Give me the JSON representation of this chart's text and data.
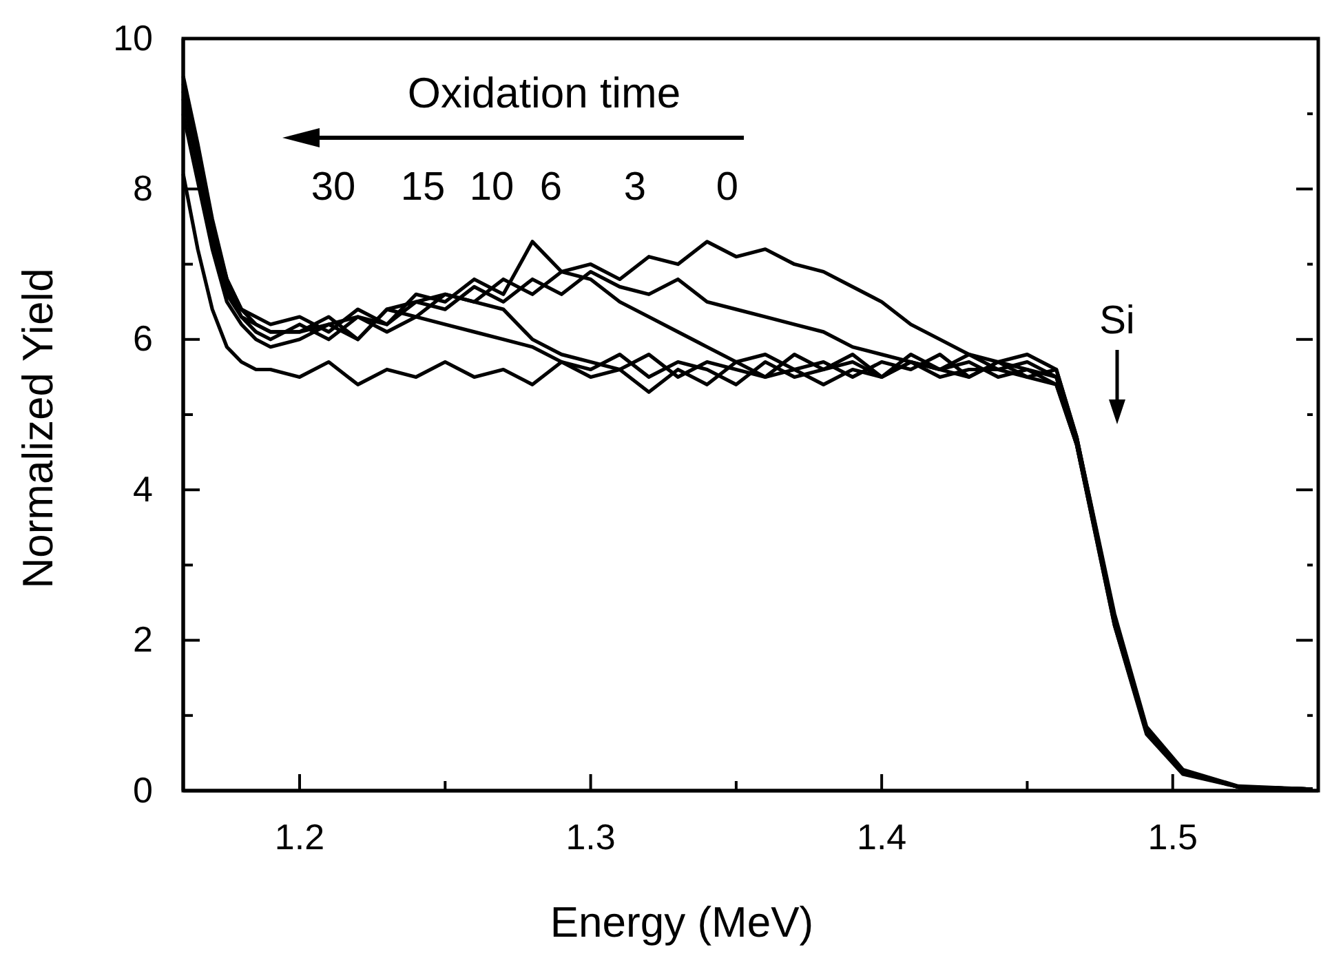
{
  "chart_data": {
    "type": "line",
    "xlabel": "Energy (MeV)",
    "ylabel": "Normalized Yield",
    "xlim": [
      1.16,
      1.55
    ],
    "ylim": [
      0,
      10
    ],
    "xticks": [
      1.2,
      {
        "value": 1.25,
        "label": null
      },
      1.3,
      {
        "value": 1.35,
        "label": null
      },
      1.4,
      {
        "value": 1.45,
        "label": null
      },
      1.5
    ],
    "yticks": [
      0,
      {
        "value": 1,
        "label": null
      },
      2,
      {
        "value": 3,
        "label": null
      },
      4,
      {
        "value": 5,
        "label": null
      },
      6,
      {
        "value": 7,
        "label": null
      },
      8,
      {
        "value": 9,
        "label": null
      },
      10
    ],
    "grid": false,
    "marker": "none",
    "line_style": "solid",
    "x": [
      1.16,
      1.165,
      1.17,
      1.175,
      1.18,
      1.185,
      1.19,
      1.2,
      1.21,
      1.22,
      1.23,
      1.24,
      1.25,
      1.26,
      1.27,
      1.28,
      1.29,
      1.3,
      1.31,
      1.32,
      1.33,
      1.34,
      1.35,
      1.36,
      1.37,
      1.38,
      1.39,
      1.4,
      1.41,
      1.42,
      1.43,
      1.44,
      1.45,
      1.46,
      1.467,
      1.48,
      1.491,
      1.5035,
      1.5225,
      1.548
    ],
    "series": [
      {
        "color": "#000000",
        "values": [
          9.5,
          8.6,
          7.6,
          6.8,
          6.4,
          6.2,
          6.1,
          6.1,
          6.3,
          6.0,
          6.4,
          6.3,
          6.6,
          6.5,
          6.8,
          6.6,
          6.9,
          7.0,
          6.8,
          7.1,
          7.0,
          7.3,
          7.1,
          7.2,
          7.0,
          6.9,
          6.7,
          6.5,
          6.2,
          6.0,
          5.8,
          5.7,
          5.8,
          5.6,
          4.7,
          2.3,
          0.8,
          0.25,
          0.05,
          0.02
        ]
      },
      {
        "color": "#000000",
        "values": [
          9.3,
          8.4,
          7.4,
          6.7,
          6.3,
          6.1,
          6.0,
          6.2,
          6.0,
          6.3,
          6.2,
          6.5,
          6.4,
          6.7,
          6.5,
          6.8,
          6.6,
          6.9,
          6.7,
          6.6,
          6.8,
          6.5,
          6.4,
          6.3,
          6.2,
          6.1,
          5.9,
          5.8,
          5.7,
          5.6,
          5.8,
          5.6,
          5.7,
          5.5,
          4.6,
          2.2,
          0.75,
          0.22,
          0.05,
          0.02
        ]
      },
      {
        "color": "#000000",
        "values": [
          9.4,
          8.5,
          7.5,
          6.8,
          6.4,
          6.3,
          6.2,
          6.3,
          6.1,
          6.4,
          6.2,
          6.6,
          6.5,
          6.8,
          6.6,
          7.3,
          6.9,
          6.8,
          6.5,
          6.3,
          6.1,
          5.9,
          5.7,
          5.8,
          5.6,
          5.7,
          5.5,
          5.7,
          5.6,
          5.8,
          5.5,
          5.7,
          5.6,
          5.5,
          4.7,
          2.35,
          0.85,
          0.28,
          0.06,
          0.02
        ]
      },
      {
        "color": "#000000",
        "values": [
          9.2,
          8.3,
          7.3,
          6.6,
          6.3,
          6.2,
          6.1,
          6.1,
          6.2,
          6.0,
          6.4,
          6.5,
          6.6,
          6.5,
          6.4,
          6.0,
          5.8,
          5.7,
          5.6,
          5.8,
          5.5,
          5.7,
          5.6,
          5.5,
          5.8,
          5.6,
          5.7,
          5.5,
          5.8,
          5.6,
          5.7,
          5.5,
          5.6,
          5.4,
          4.6,
          2.25,
          0.8,
          0.25,
          0.05,
          0.02
        ]
      },
      {
        "color": "#000000",
        "values": [
          9.0,
          8.1,
          7.2,
          6.5,
          6.2,
          6.0,
          5.9,
          6.0,
          6.2,
          6.3,
          6.1,
          6.3,
          6.2,
          6.1,
          6.0,
          5.9,
          5.7,
          5.6,
          5.8,
          5.5,
          5.7,
          5.6,
          5.4,
          5.7,
          5.5,
          5.6,
          5.8,
          5.5,
          5.7,
          5.6,
          5.5,
          5.7,
          5.5,
          5.6,
          4.7,
          2.3,
          0.8,
          0.26,
          0.05,
          0.02
        ]
      },
      {
        "color": "#000000",
        "values": [
          8.2,
          7.2,
          6.4,
          5.9,
          5.7,
          5.6,
          5.6,
          5.5,
          5.7,
          5.4,
          5.6,
          5.5,
          5.7,
          5.5,
          5.6,
          5.4,
          5.7,
          5.5,
          5.6,
          5.3,
          5.6,
          5.4,
          5.7,
          5.5,
          5.6,
          5.4,
          5.6,
          5.5,
          5.7,
          5.5,
          5.6,
          5.6,
          5.5,
          5.4,
          4.6,
          2.2,
          0.78,
          0.24,
          0.05,
          0.02
        ]
      }
    ],
    "annotations": [
      "Oxidation time",
      "30",
      "15",
      "10",
      "6",
      "3",
      "0",
      "Si"
    ]
  }
}
